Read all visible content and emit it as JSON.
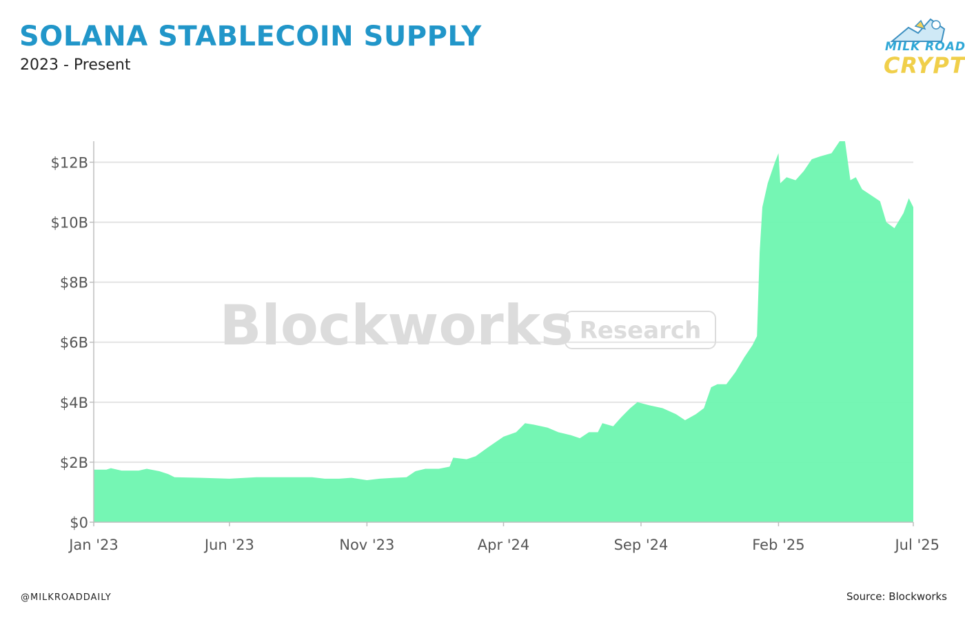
{
  "header": {
    "title": "SOLANA STABLECOIN SUPPLY",
    "subtitle": "2023 - Present"
  },
  "logo": {
    "line1": "MILK ROAD",
    "line2": "CRYPTO"
  },
  "watermark": {
    "brand": "Blockworks",
    "tag": "Research"
  },
  "footer": {
    "handle": "@MILKROADDAILY",
    "source": "Source: Blockworks"
  },
  "colors": {
    "title": "#2196c9",
    "area": "#6ef5b0",
    "grid": "#e3e3e3",
    "tick_text": "#555555"
  },
  "chart_data": {
    "type": "area",
    "x_unit": "date",
    "y_unit": "USD billions",
    "ylim": [
      0,
      12.7
    ],
    "yticks": [
      0,
      2,
      4,
      6,
      8,
      10,
      12
    ],
    "ytick_labels": [
      "$0",
      "$2B",
      "$4B",
      "$6B",
      "$8B",
      "$10B",
      "$12B"
    ],
    "xticks": [
      "2023-01-01",
      "2023-06-01",
      "2023-11-01",
      "2024-04-01",
      "2024-09-01",
      "2025-02-01",
      "2025-07-01"
    ],
    "xtick_labels": [
      "Jan '23",
      "Jun '23",
      "Nov '23",
      "Apr '24",
      "Sep '24",
      "Feb '25",
      "Jul '25"
    ],
    "xlim": [
      "2023-01-01",
      "2025-07-01"
    ],
    "grid": true,
    "legend": "none",
    "series": [
      {
        "points": [
          [
            "2023-01-01",
            1.75
          ],
          [
            "2023-01-15",
            1.75
          ],
          [
            "2023-01-20",
            1.8
          ],
          [
            "2023-02-01",
            1.72
          ],
          [
            "2023-02-20",
            1.72
          ],
          [
            "2023-03-01",
            1.78
          ],
          [
            "2023-03-15",
            1.7
          ],
          [
            "2023-03-25",
            1.6
          ],
          [
            "2023-04-01",
            1.5
          ],
          [
            "2023-05-01",
            1.48
          ],
          [
            "2023-06-01",
            1.45
          ],
          [
            "2023-07-01",
            1.5
          ],
          [
            "2023-08-01",
            1.5
          ],
          [
            "2023-09-01",
            1.5
          ],
          [
            "2023-09-15",
            1.45
          ],
          [
            "2023-10-01",
            1.45
          ],
          [
            "2023-10-15",
            1.48
          ],
          [
            "2023-11-01",
            1.4
          ],
          [
            "2023-11-15",
            1.45
          ],
          [
            "2023-12-01",
            1.48
          ],
          [
            "2023-12-15",
            1.5
          ],
          [
            "2023-12-25",
            1.7
          ],
          [
            "2024-01-05",
            1.78
          ],
          [
            "2024-01-20",
            1.78
          ],
          [
            "2024-02-01",
            1.85
          ],
          [
            "2024-02-05",
            2.15
          ],
          [
            "2024-02-20",
            2.1
          ],
          [
            "2024-03-01",
            2.2
          ],
          [
            "2024-03-15",
            2.5
          ],
          [
            "2024-04-01",
            2.85
          ],
          [
            "2024-04-15",
            3.0
          ],
          [
            "2024-04-25",
            3.3
          ],
          [
            "2024-05-05",
            3.25
          ],
          [
            "2024-05-20",
            3.15
          ],
          [
            "2024-06-01",
            3.0
          ],
          [
            "2024-06-15",
            2.9
          ],
          [
            "2024-06-25",
            2.8
          ],
          [
            "2024-07-05",
            3.0
          ],
          [
            "2024-07-15",
            3.0
          ],
          [
            "2024-07-20",
            3.3
          ],
          [
            "2024-08-01",
            3.2
          ],
          [
            "2024-08-10",
            3.5
          ],
          [
            "2024-08-20",
            3.8
          ],
          [
            "2024-08-28",
            4.0
          ],
          [
            "2024-09-10",
            3.9
          ],
          [
            "2024-09-25",
            3.8
          ],
          [
            "2024-10-10",
            3.6
          ],
          [
            "2024-10-20",
            3.4
          ],
          [
            "2024-11-01",
            3.6
          ],
          [
            "2024-11-10",
            3.8
          ],
          [
            "2024-11-18",
            4.5
          ],
          [
            "2024-11-25",
            4.6
          ],
          [
            "2024-12-05",
            4.6
          ],
          [
            "2024-12-15",
            5.0
          ],
          [
            "2024-12-25",
            5.5
          ],
          [
            "2025-01-03",
            5.9
          ],
          [
            "2025-01-08",
            6.2
          ],
          [
            "2025-01-11",
            9.0
          ],
          [
            "2025-01-14",
            10.5
          ],
          [
            "2025-01-20",
            11.3
          ],
          [
            "2025-01-28",
            12.0
          ],
          [
            "2025-02-01",
            12.3
          ],
          [
            "2025-02-03",
            11.3
          ],
          [
            "2025-02-10",
            11.5
          ],
          [
            "2025-02-20",
            11.4
          ],
          [
            "2025-03-01",
            11.7
          ],
          [
            "2025-03-10",
            12.1
          ],
          [
            "2025-03-20",
            12.2
          ],
          [
            "2025-04-01",
            12.3
          ],
          [
            "2025-04-10",
            12.7
          ],
          [
            "2025-04-16",
            12.7
          ],
          [
            "2025-04-22",
            11.4
          ],
          [
            "2025-04-28",
            11.5
          ],
          [
            "2025-05-05",
            11.1
          ],
          [
            "2025-05-15",
            10.9
          ],
          [
            "2025-05-25",
            10.7
          ],
          [
            "2025-06-01",
            10.0
          ],
          [
            "2025-06-10",
            9.8
          ],
          [
            "2025-06-20",
            10.3
          ],
          [
            "2025-06-26",
            10.8
          ],
          [
            "2025-07-01",
            10.5
          ]
        ]
      }
    ]
  }
}
